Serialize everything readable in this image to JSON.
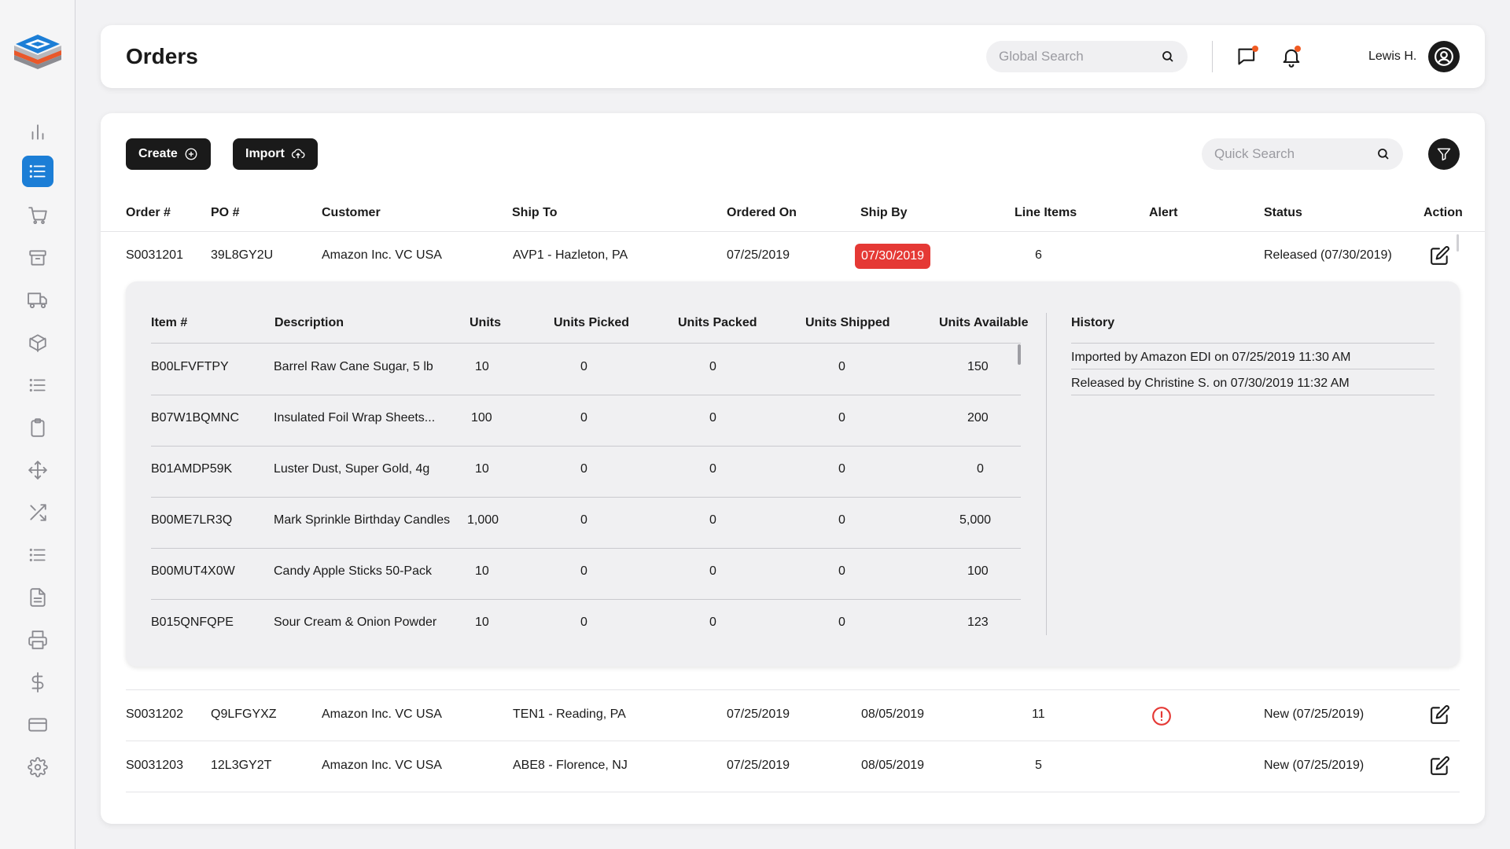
{
  "app": {
    "accent": "#1c7ed6",
    "alert_color": "#e53935",
    "dark": "#1a1a1a"
  },
  "sidebar": {
    "items": [
      {
        "icon": "bar-chart-icon",
        "active": false
      },
      {
        "icon": "list-icon",
        "active": true
      },
      {
        "icon": "cart-icon",
        "active": false
      },
      {
        "icon": "archive-icon",
        "active": false
      },
      {
        "icon": "truck-icon",
        "active": false
      },
      {
        "icon": "box-icon",
        "active": false
      },
      {
        "icon": "list-icon",
        "active": false
      },
      {
        "icon": "clipboard-icon",
        "active": false
      },
      {
        "icon": "move-icon",
        "active": false
      },
      {
        "icon": "shuffle-icon",
        "active": false
      },
      {
        "icon": "list-icon",
        "active": false
      },
      {
        "icon": "document-icon",
        "active": false
      },
      {
        "icon": "printer-icon",
        "active": false
      },
      {
        "icon": "dollar-icon",
        "active": false
      },
      {
        "icon": "credit-card-icon",
        "active": false
      },
      {
        "icon": "gear-icon",
        "active": false
      }
    ]
  },
  "header": {
    "title": "Orders",
    "global_search_placeholder": "Global Search",
    "user_name": "Lewis H.",
    "notification_dot_color": "#f05a22"
  },
  "toolbar": {
    "create_label": "Create",
    "import_label": "Import",
    "quick_search_placeholder": "Quick Search"
  },
  "orders_table": {
    "columns": [
      "Order #",
      "PO #",
      "Customer",
      "Ship To",
      "Ordered On",
      "Ship By",
      "Line Items",
      "Alert",
      "Status",
      "Action"
    ],
    "rows": [
      {
        "order": "S0031201",
        "po": "39L8GY2U",
        "customer": "Amazon Inc. VC USA",
        "ship_to": "AVP1 - Hazleton, PA",
        "ordered_on": "07/25/2019",
        "ship_by": "07/30/2019",
        "ship_by_overdue": true,
        "line_items": "6",
        "alert": false,
        "status": "Released (07/30/2019)",
        "expanded": true
      },
      {
        "order": "S0031202",
        "po": "Q9LFGYXZ",
        "customer": "Amazon Inc. VC USA",
        "ship_to": "TEN1 - Reading, PA",
        "ordered_on": "07/25/2019",
        "ship_by": "08/05/2019",
        "ship_by_overdue": false,
        "line_items": "11",
        "alert": true,
        "status": "New (07/25/2019)",
        "expanded": false
      },
      {
        "order": "S0031203",
        "po": "12L3GY2T",
        "customer": "Amazon Inc. VC USA",
        "ship_to": "ABE8 - Florence, NJ",
        "ordered_on": "07/25/2019",
        "ship_by": "08/05/2019",
        "ship_by_overdue": false,
        "line_items": "5",
        "alert": false,
        "status": "New (07/25/2019)",
        "expanded": false
      }
    ]
  },
  "line_items": {
    "columns": [
      "Item #",
      "Description",
      "Units",
      "Units Picked",
      "Units Packed",
      "Units Shipped",
      "Units Available"
    ],
    "rows": [
      {
        "item": "B00LFVFTPY",
        "description": "Barrel Raw Cane Sugar, 5 lb",
        "units": "10",
        "picked": "0",
        "packed": "0",
        "shipped": "0",
        "available": "150"
      },
      {
        "item": "B07W1BQMNC",
        "description": "Insulated Foil Wrap Sheets...",
        "units": "100",
        "picked": "0",
        "packed": "0",
        "shipped": "0",
        "available": "200"
      },
      {
        "item": "B01AMDP59K",
        "description": "Luster Dust, Super Gold, 4g",
        "units": "10",
        "picked": "0",
        "packed": "0",
        "shipped": "0",
        "available": "0"
      },
      {
        "item": "B00ME7LR3Q",
        "description": "Mark Sprinkle Birthday Candles",
        "units": "1,000",
        "picked": "0",
        "packed": "0",
        "shipped": "0",
        "available": "5,000"
      },
      {
        "item": "B00MUT4X0W",
        "description": "Candy Apple Sticks 50-Pack",
        "units": "10",
        "picked": "0",
        "packed": "0",
        "shipped": "0",
        "available": "100"
      },
      {
        "item": "B015QNFQPE",
        "description": "Sour Cream & Onion Powder",
        "units": "10",
        "picked": "0",
        "packed": "0",
        "shipped": "0",
        "available": "123"
      }
    ]
  },
  "history": {
    "title": "History",
    "entries": [
      "Imported by Amazon EDI on 07/25/2019 11:30 AM",
      "Released by Christine S. on 07/30/2019 11:32 AM"
    ]
  }
}
